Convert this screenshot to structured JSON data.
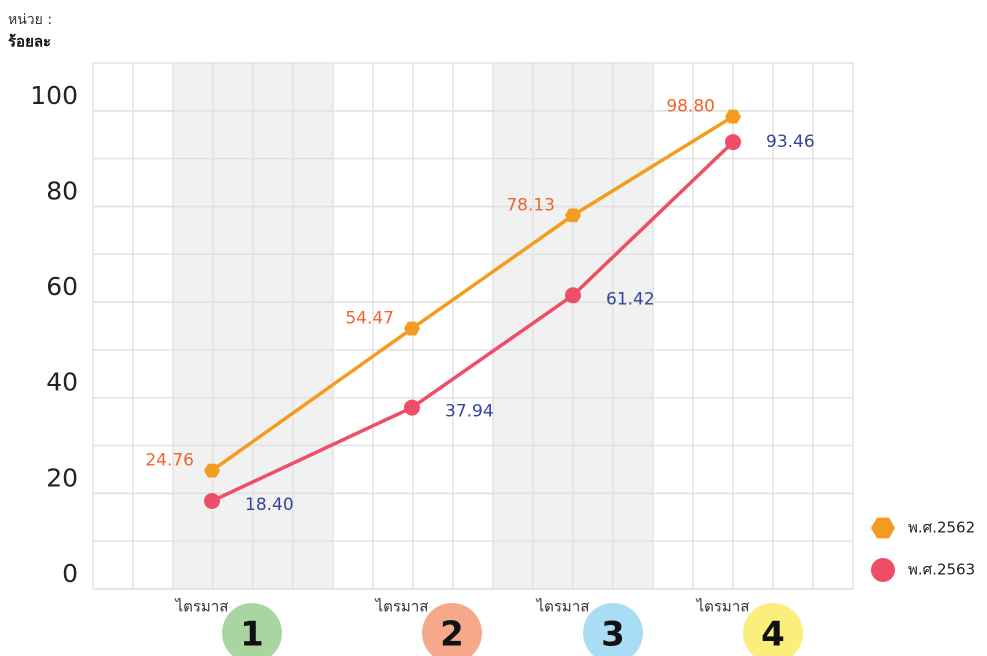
{
  "chart_data": {
    "type": "line",
    "unit_label": "หน่วย :",
    "unit": "ร้อยละ",
    "categories": [
      "ไตรมาส",
      "ไตรมาส",
      "ไตรมาส",
      "ไตรมาส"
    ],
    "badges": [
      "1",
      "2",
      "3",
      "4"
    ],
    "series": [
      {
        "name": "พ.ศ.2562",
        "color": "#f39c1f",
        "label_color": "#f0642e",
        "marker": "hexagon",
        "values": [
          24.76,
          54.47,
          78.13,
          98.8
        ],
        "value_labels": [
          "24.76",
          "54.47",
          "78.13",
          "98.80"
        ]
      },
      {
        "name": "พ.ศ.2563",
        "color": "#ee4e67",
        "label_color": "#34449a",
        "marker": "circle",
        "values": [
          18.4,
          37.94,
          61.42,
          93.46
        ],
        "value_labels": [
          "18.40",
          "37.94",
          "61.42",
          "93.46"
        ]
      }
    ],
    "ylim": [
      0,
      110
    ],
    "yticks": [
      0,
      20,
      40,
      60,
      80,
      100
    ],
    "grid": true
  }
}
